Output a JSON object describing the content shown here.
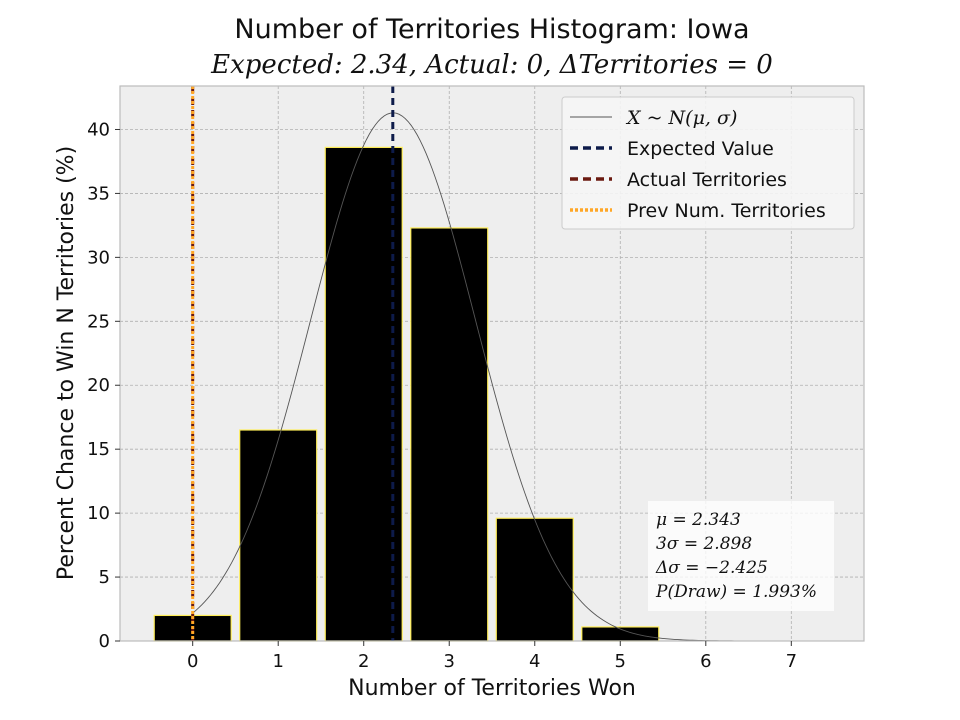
{
  "chart_data": {
    "type": "bar",
    "title": "Number of Territories Histogram: Iowa",
    "subtitle": "Expected: 2.34, Actual: 0, ΔTerritories = 0",
    "xlabel": "Number of Territories Won",
    "ylabel": "Percent Chance to Win N Territories (%)",
    "categories": [
      0,
      1,
      2,
      3,
      4,
      5,
      6,
      7
    ],
    "values": [
      2.0,
      16.5,
      38.6,
      32.3,
      9.6,
      1.1,
      0.0,
      0.0
    ],
    "xlim": [
      -0.85,
      7.85
    ],
    "ylim": [
      0,
      43.4
    ],
    "xticks": [
      "0",
      "1",
      "2",
      "3",
      "4",
      "5",
      "6",
      "7"
    ],
    "yticks": [
      "0",
      "5",
      "10",
      "15",
      "20",
      "25",
      "30",
      "35",
      "40"
    ],
    "grid": true,
    "expected_value": 2.34,
    "actual_territories": 0,
    "prev_territories": 0,
    "normal_curve": {
      "mu": 2.343,
      "sigma": 0.966,
      "peak": 41.3
    },
    "legend": {
      "placement": "top-right",
      "entries": [
        {
          "label": "X ~ N(μ, σ)",
          "style": "thin-line",
          "color": "#555555"
        },
        {
          "label": "Expected Value",
          "style": "dashed",
          "color": "#0d1b4a"
        },
        {
          "label": "Actual Territories",
          "style": "dashed",
          "color": "#6b1a10"
        },
        {
          "label": "Prev Num. Territories",
          "style": "dotted",
          "color": "#ffa726"
        }
      ]
    },
    "stats_box": {
      "placement": "bottom-right",
      "lines": [
        "μ = 2.343",
        "3σ = 2.898",
        "Δσ = −2.425",
        "P(Draw) = 1.993%"
      ]
    },
    "colors": {
      "bar_fill": "#000000",
      "bar_edge": "#ffee58",
      "plot_bg": "#eeeeee",
      "grid": "#b0b0b0"
    }
  }
}
